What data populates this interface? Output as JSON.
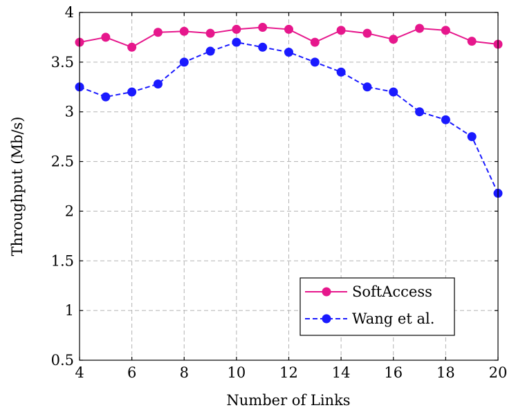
{
  "chart_data": {
    "type": "line",
    "xlabel": "Number of Links",
    "ylabel": "Throughput (Mb/s)",
    "xlim": [
      4,
      20
    ],
    "ylim": [
      0.5,
      4
    ],
    "xticks": [
      4,
      6,
      8,
      10,
      12,
      14,
      16,
      18,
      20
    ],
    "xtick_labels": [
      "4",
      "6",
      "8",
      "10",
      "12",
      "14",
      "16",
      "18",
      "20"
    ],
    "yticks": [
      0.5,
      1,
      1.5,
      2,
      2.5,
      3,
      3.5,
      4
    ],
    "ytick_labels": [
      "0.5",
      "1",
      "1.5",
      "2",
      "2.5",
      "3",
      "3.5",
      "4"
    ],
    "grid": true,
    "legend_position": "bottom-right",
    "x": [
      4,
      5,
      6,
      7,
      8,
      9,
      10,
      11,
      12,
      13,
      14,
      15,
      16,
      17,
      18,
      19,
      20
    ],
    "series": [
      {
        "name": "SoftAccess",
        "color": "#e6178c",
        "line_style": "solid",
        "marker": "circle",
        "values": [
          3.7,
          3.75,
          3.65,
          3.8,
          3.81,
          3.79,
          3.83,
          3.85,
          3.83,
          3.7,
          3.82,
          3.79,
          3.73,
          3.84,
          3.82,
          3.71,
          3.68
        ]
      },
      {
        "name": "Wang et al.",
        "color": "#1a1aff",
        "line_style": "dashed",
        "marker": "circle",
        "values": [
          3.25,
          3.15,
          3.2,
          3.28,
          3.5,
          3.61,
          3.7,
          3.65,
          3.6,
          3.5,
          3.4,
          3.25,
          3.2,
          3.0,
          2.92,
          2.75,
          2.18
        ]
      }
    ]
  }
}
